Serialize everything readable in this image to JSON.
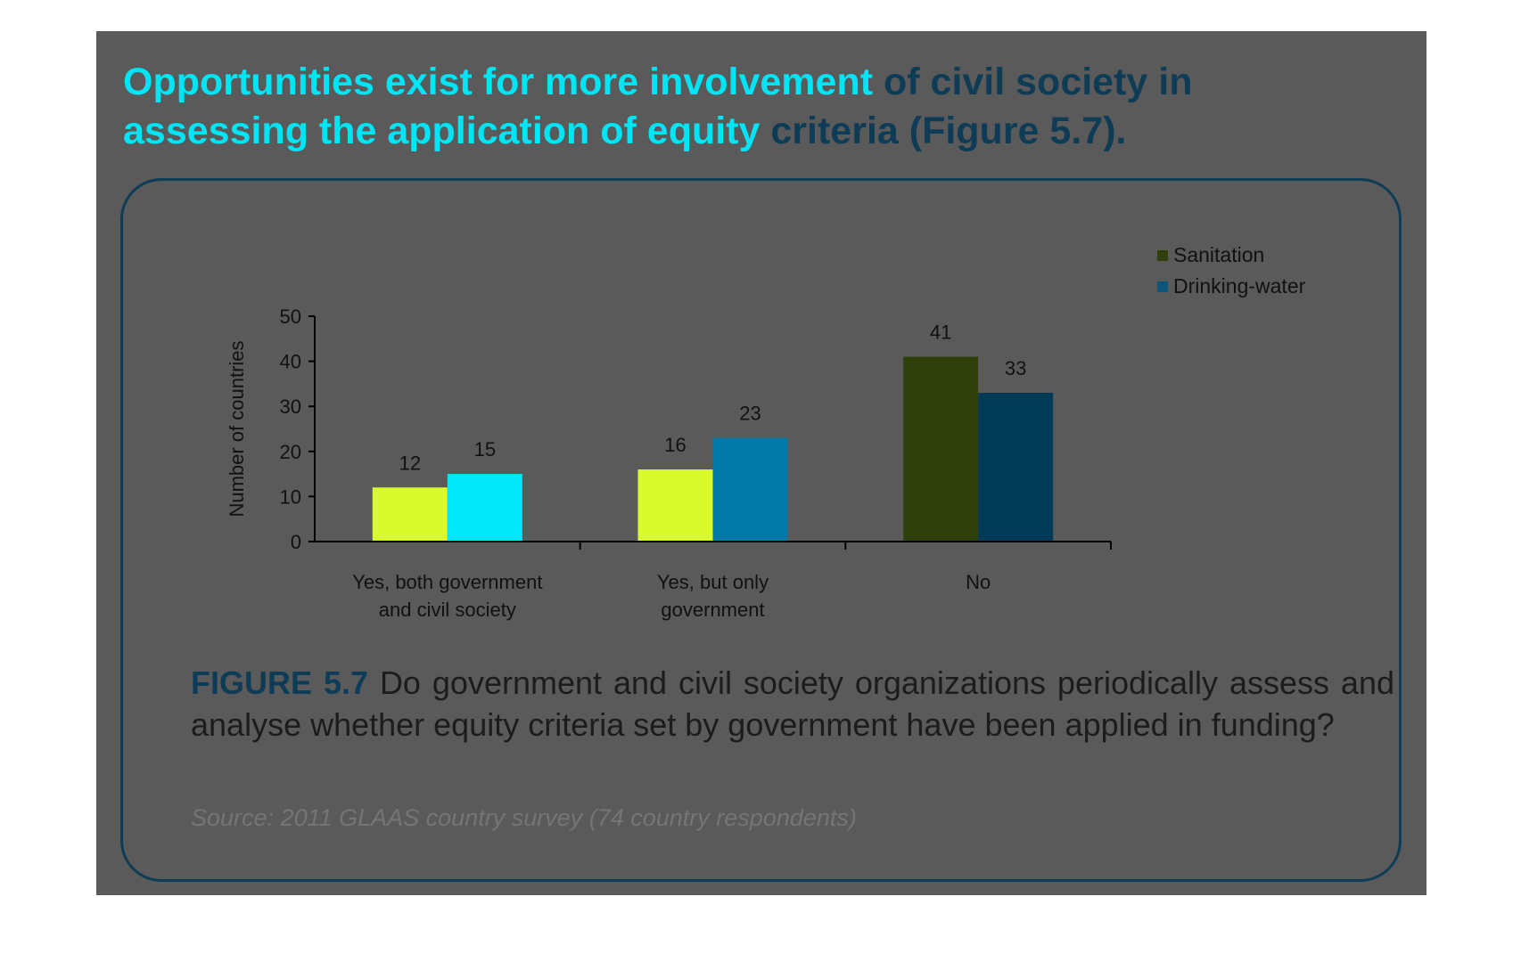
{
  "heading": {
    "highlighted": "Opportunities exist for more involvement",
    "rest_line1": " of civil society in",
    "line2_highlighted": "assessing the application of equity",
    "rest_line2": " criteria (Figure 5.7)."
  },
  "caption": {
    "figure_label": "FIGURE 5.7",
    "text": " Do government and civil society organizations periodically assess and analyse whether equity criteria set by government have been applied in funding?"
  },
  "source": "Source: 2011 GLAAS country survey (74 country respondents)",
  "colors": {
    "panel_bg": "#5a5a5a",
    "heading_dark": "#0e3c56",
    "heading_highlight": "#00e5f5"
  },
  "chart_data": {
    "type": "bar",
    "categories": [
      [
        "Yes, both government",
        "and civil society"
      ],
      [
        "Yes, but only",
        "government"
      ],
      [
        "No"
      ]
    ],
    "series": [
      {
        "name": "Sanitation",
        "values": [
          12,
          16,
          41
        ],
        "colors": [
          "#d9fb2d",
          "#d9fb2d",
          "#2f400d"
        ],
        "legend_color": "#2f400d"
      },
      {
        "name": "Drinking-water",
        "values": [
          15,
          23,
          33
        ],
        "colors": [
          "#00e8f7",
          "#0078a8",
          "#003a56"
        ],
        "legend_color": "#0b5578"
      }
    ],
    "ylabel": "Number of countries",
    "xlabel": "",
    "ylim": [
      0,
      50
    ],
    "yticks": [
      0,
      10,
      20,
      30,
      40,
      50
    ],
    "legend_position": "top-right",
    "grid": false
  }
}
